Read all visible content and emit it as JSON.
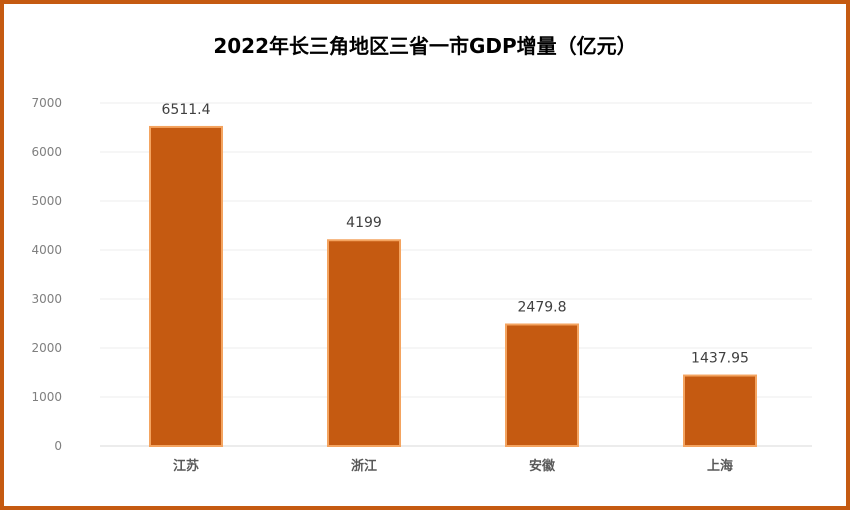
{
  "chart_data": {
    "type": "bar",
    "title": "2022年长三角地区三省一市GDP增量（亿元）",
    "categories": [
      "江苏",
      "浙江",
      "安徽",
      "上海"
    ],
    "values": [
      6511.4,
      4199,
      2479.8,
      1437.95
    ],
    "data_labels": [
      "6511.4",
      "4199",
      "2479.8",
      "1437.95"
    ],
    "ylim": [
      0,
      7000
    ],
    "yticks": [
      "0",
      "1000",
      "2000",
      "3000",
      "4000",
      "5000",
      "6000",
      "7000"
    ],
    "xlabel": "",
    "ylabel": "",
    "grid": true,
    "legend": "none",
    "bar_color": "#c55a11",
    "bar_edge_color": "#f4a460",
    "frame_color": "#c55a11"
  }
}
